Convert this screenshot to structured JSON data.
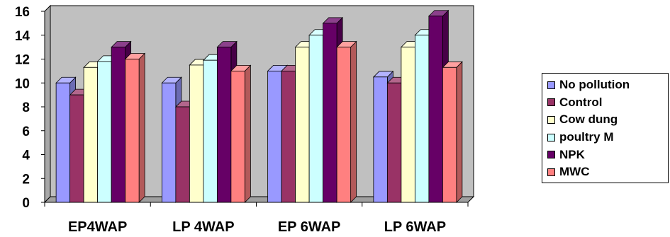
{
  "chart_data": {
    "type": "bar",
    "style": "3d-clustered-column",
    "categories": [
      "EP4WAP",
      "LP 4WAP",
      "EP 6WAP",
      "LP 6WAP"
    ],
    "series": [
      {
        "name": "No pollution",
        "color": "#9999ff",
        "values": [
          10,
          10,
          11,
          10.5
        ]
      },
      {
        "name": "Control",
        "color": "#993366",
        "values": [
          9,
          8,
          11,
          10
        ]
      },
      {
        "name": "Cow dung",
        "color": "#ffffcc",
        "values": [
          11.3,
          11.5,
          13,
          13
        ]
      },
      {
        "name": "poultry M",
        "color": "#ccffff",
        "values": [
          11.8,
          11.9,
          14,
          14
        ]
      },
      {
        "name": "NPK",
        "color": "#660066",
        "values": [
          13,
          13,
          15,
          15.6
        ]
      },
      {
        "name": "MWC",
        "color": "#ff8080",
        "values": [
          12,
          11,
          13,
          11.3
        ]
      }
    ],
    "ylim": [
      0,
      16
    ],
    "yticks": [
      0,
      2,
      4,
      6,
      8,
      10,
      12,
      14,
      16
    ],
    "grid": false,
    "wall_color": "#c0c0c0",
    "legend_position": "right"
  }
}
